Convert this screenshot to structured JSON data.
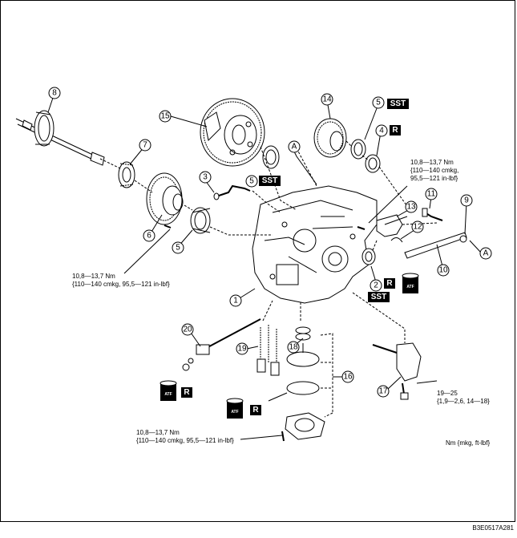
{
  "callouts": {
    "n1": "1",
    "n2": "2",
    "n3": "3",
    "n4": "4",
    "n5a": "5",
    "n5b": "5",
    "n5c": "5",
    "n6": "6",
    "n7": "7",
    "n8": "8",
    "n9": "9",
    "n10": "10",
    "n11": "11",
    "n12": "12",
    "n13": "13",
    "n14": "14",
    "n15": "15",
    "n16": "16",
    "n17": "17",
    "n18": "18",
    "n19": "19",
    "n20": "20",
    "refA1": "A",
    "refA2": "A"
  },
  "badges": {
    "sst_top": "SST",
    "sst_mid": "SST",
    "sst_low": "SST",
    "r_top": "R",
    "r_mid": "R",
    "r_left": "R",
    "r_center": "R"
  },
  "atf_label": "ATF",
  "torque": {
    "upper_right": {
      "line1": "10,8—13,7 Nm",
      "line2": "{110—140 cmkg,",
      "line3": "95,5—121 in-lbf}"
    },
    "mid_left": {
      "line1": "10,8—13,7 Nm",
      "line2": "{110—140 cmkg, 95,5—121 in-lbf}"
    },
    "bottom": {
      "line1": "10,8—13,7 Nm",
      "line2": "{110—140 cmkg, 95,5—121 in-lbf}"
    },
    "right_small": {
      "line1": "19—25",
      "line2": "{1,9—2,6, 14—18}"
    }
  },
  "units": "Nm {mkg, ft-lbf}",
  "figure_id": "B3E0517A281"
}
